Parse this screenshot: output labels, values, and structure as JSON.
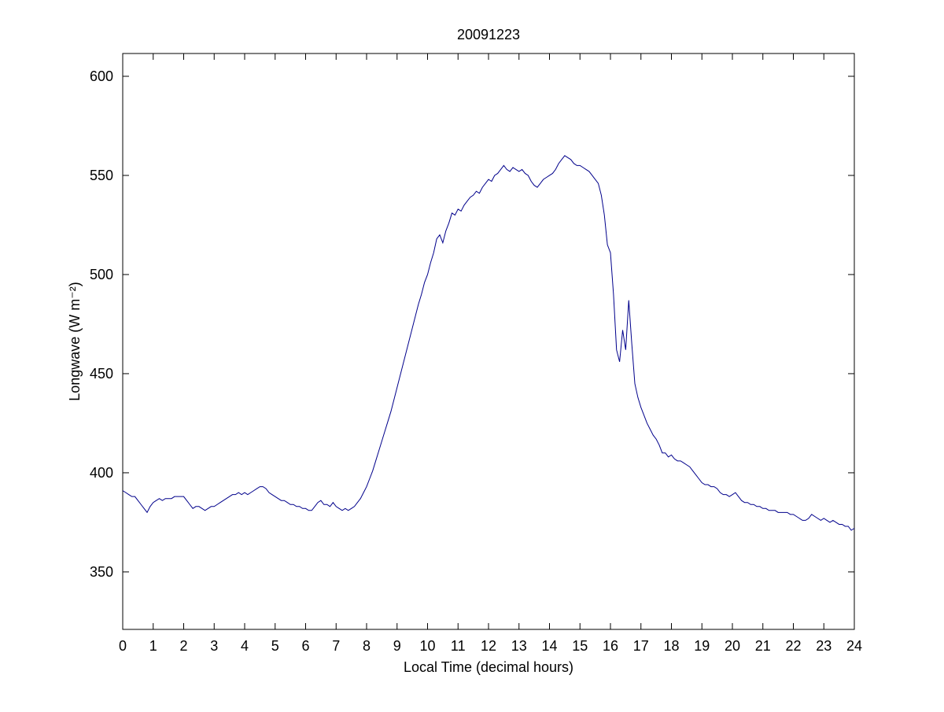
{
  "chart_data": {
    "type": "line",
    "title": "20091223",
    "xlabel": "Local Time (decimal hours)",
    "ylabel": "Longwave (W m⁻²)",
    "xlim": [
      0,
      24
    ],
    "xticks": [
      0,
      1,
      2,
      3,
      4,
      5,
      6,
      7,
      8,
      9,
      10,
      11,
      12,
      13,
      14,
      15,
      16,
      17,
      18,
      19,
      20,
      21,
      22,
      23,
      24
    ],
    "ylim": [
      321,
      611.5
    ],
    "yticks": [
      350,
      400,
      450,
      500,
      550,
      600
    ],
    "x": [
      0,
      0.1,
      0.2,
      0.3,
      0.4,
      0.5,
      0.6,
      0.7,
      0.8,
      0.9,
      1,
      1.1,
      1.2,
      1.3,
      1.4,
      1.5,
      1.6,
      1.7,
      1.8,
      1.9,
      2,
      2.1,
      2.2,
      2.3,
      2.4,
      2.5,
      2.6,
      2.7,
      2.8,
      2.9,
      3,
      3.1,
      3.2,
      3.3,
      3.4,
      3.5,
      3.6,
      3.7,
      3.8,
      3.9,
      4,
      4.1,
      4.2,
      4.3,
      4.4,
      4.5,
      4.6,
      4.7,
      4.8,
      4.9,
      5,
      5.1,
      5.2,
      5.3,
      5.4,
      5.5,
      5.6,
      5.7,
      5.8,
      5.9,
      6,
      6.1,
      6.2,
      6.3,
      6.4,
      6.5,
      6.6,
      6.7,
      6.8,
      6.9,
      7,
      7.1,
      7.2,
      7.3,
      7.4,
      7.5,
      7.6,
      7.7,
      7.8,
      7.9,
      8,
      8.1,
      8.2,
      8.3,
      8.4,
      8.5,
      8.6,
      8.7,
      8.8,
      8.9,
      9,
      9.1,
      9.2,
      9.3,
      9.4,
      9.5,
      9.6,
      9.7,
      9.8,
      9.9,
      10,
      10.1,
      10.2,
      10.3,
      10.4,
      10.5,
      10.6,
      10.7,
      10.8,
      10.9,
      11,
      11.1,
      11.2,
      11.3,
      11.4,
      11.5,
      11.6,
      11.7,
      11.8,
      11.9,
      12,
      12.1,
      12.2,
      12.3,
      12.4,
      12.5,
      12.6,
      12.7,
      12.8,
      12.9,
      13,
      13.1,
      13.2,
      13.3,
      13.4,
      13.5,
      13.6,
      13.7,
      13.8,
      13.9,
      14,
      14.1,
      14.2,
      14.3,
      14.4,
      14.5,
      14.6,
      14.7,
      14.8,
      14.9,
      15,
      15.1,
      15.2,
      15.3,
      15.4,
      15.5,
      15.6,
      15.7,
      15.8,
      15.9,
      16,
      16.1,
      16.2,
      16.3,
      16.4,
      16.5,
      16.6,
      16.7,
      16.8,
      16.9,
      17,
      17.1,
      17.2,
      17.3,
      17.4,
      17.5,
      17.6,
      17.7,
      17.8,
      17.9,
      18,
      18.1,
      18.2,
      18.3,
      18.4,
      18.5,
      18.6,
      18.7,
      18.8,
      18.9,
      19,
      19.1,
      19.2,
      19.3,
      19.4,
      19.5,
      19.6,
      19.7,
      19.8,
      19.9,
      20,
      20.1,
      20.2,
      20.3,
      20.4,
      20.5,
      20.6,
      20.7,
      20.8,
      20.9,
      21,
      21.1,
      21.2,
      21.3,
      21.4,
      21.5,
      21.6,
      21.7,
      21.8,
      21.9,
      22,
      22.1,
      22.2,
      22.3,
      22.4,
      22.5,
      22.6,
      22.7,
      22.8,
      22.9,
      23,
      23.1,
      23.2,
      23.3,
      23.4,
      23.5,
      23.6,
      23.7,
      23.8,
      23.9,
      24
    ],
    "series": [
      {
        "color": "#00008b",
        "values": [
          391,
          390,
          389,
          388,
          388,
          386,
          384,
          382,
          380,
          383,
          385,
          386,
          387,
          386,
          387,
          387,
          387,
          388,
          388,
          388,
          388,
          386,
          384,
          382,
          383,
          383,
          382,
          381,
          382,
          383,
          383,
          384,
          385,
          386,
          387,
          388,
          389,
          389,
          390,
          389,
          390,
          389,
          390,
          391,
          392,
          393,
          393,
          392,
          390,
          389,
          388,
          387,
          386,
          386,
          385,
          384,
          384,
          383,
          383,
          382,
          382,
          381,
          381,
          383,
          385,
          386,
          384,
          384,
          383,
          385,
          383,
          382,
          381,
          382,
          381,
          382,
          383,
          385,
          387,
          390,
          393,
          397,
          401,
          406,
          411,
          416,
          421,
          426,
          431,
          437,
          443,
          449,
          455,
          461,
          467,
          473,
          479,
          485,
          490,
          496,
          500,
          506,
          511,
          518,
          520,
          516,
          522,
          526,
          531,
          530,
          533,
          532,
          535,
          537,
          539,
          540,
          542,
          541,
          544,
          546,
          548,
          547,
          550,
          551,
          553,
          555,
          553,
          552,
          554,
          553,
          552,
          553,
          551,
          550,
          547,
          545,
          544,
          546,
          548,
          549,
          550,
          551,
          553,
          556,
          558,
          560,
          559,
          558,
          556,
          555,
          555,
          554,
          553,
          552,
          550,
          548,
          546,
          540,
          530,
          515,
          511,
          490,
          462,
          456,
          472,
          462,
          487,
          465,
          445,
          438,
          433,
          429,
          425,
          422,
          419,
          417,
          414,
          410,
          410,
          408,
          409,
          407,
          406,
          406,
          405,
          404,
          403,
          401,
          399,
          397,
          395,
          394,
          394,
          393,
          393,
          392,
          390,
          389,
          389,
          388,
          389,
          390,
          388,
          386,
          385,
          385,
          384,
          384,
          383,
          383,
          382,
          382,
          381,
          381,
          381,
          380,
          380,
          380,
          380,
          379,
          379,
          378,
          377,
          376,
          376,
          377,
          379,
          378,
          377,
          376,
          377,
          376,
          375,
          376,
          375,
          374,
          374,
          373,
          373,
          371,
          372
        ]
      }
    ]
  }
}
